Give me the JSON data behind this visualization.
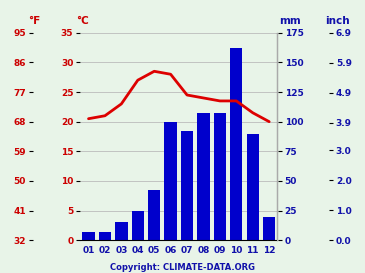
{
  "months": [
    "01",
    "02",
    "03",
    "04",
    "05",
    "06",
    "07",
    "08",
    "09",
    "10",
    "11",
    "12"
  ],
  "precip_mm": [
    7,
    7,
    15,
    25,
    42,
    100,
    92,
    107,
    107,
    162,
    90,
    20
  ],
  "temp_c": [
    20.5,
    21.0,
    23.0,
    27.0,
    28.5,
    28.0,
    24.5,
    24.0,
    23.5,
    23.5,
    21.5,
    20.0
  ],
  "bar_color": "#0000cc",
  "line_color": "#dd0000",
  "bg_color": "#e8f4e8",
  "grid_color": "#bbbbbb",
  "left_ticks_f": [
    32,
    41,
    50,
    59,
    68,
    77,
    86,
    95
  ],
  "left_ticks_c": [
    0,
    5,
    10,
    15,
    20,
    25,
    30,
    35
  ],
  "right_ticks_mm": [
    0,
    25,
    50,
    75,
    100,
    125,
    150,
    175
  ],
  "right_ticks_inch": [
    "0.0",
    "1.0",
    "2.0",
    "3.0",
    "3.9",
    "4.9",
    "5.9",
    "6.9"
  ],
  "right_ticks_inch_pos": [
    0,
    25.4,
    50.8,
    76.2,
    99.1,
    124.5,
    149.9,
    175.3
  ],
  "ylabel_left_f": "°F",
  "ylabel_left_c": "°C",
  "ylabel_right_mm": "mm",
  "ylabel_right_inch": "inch",
  "copyright": "Copyright: CLIMATE-DATA.ORG",
  "precip_max": 175,
  "temp_min": 0,
  "temp_max": 35
}
